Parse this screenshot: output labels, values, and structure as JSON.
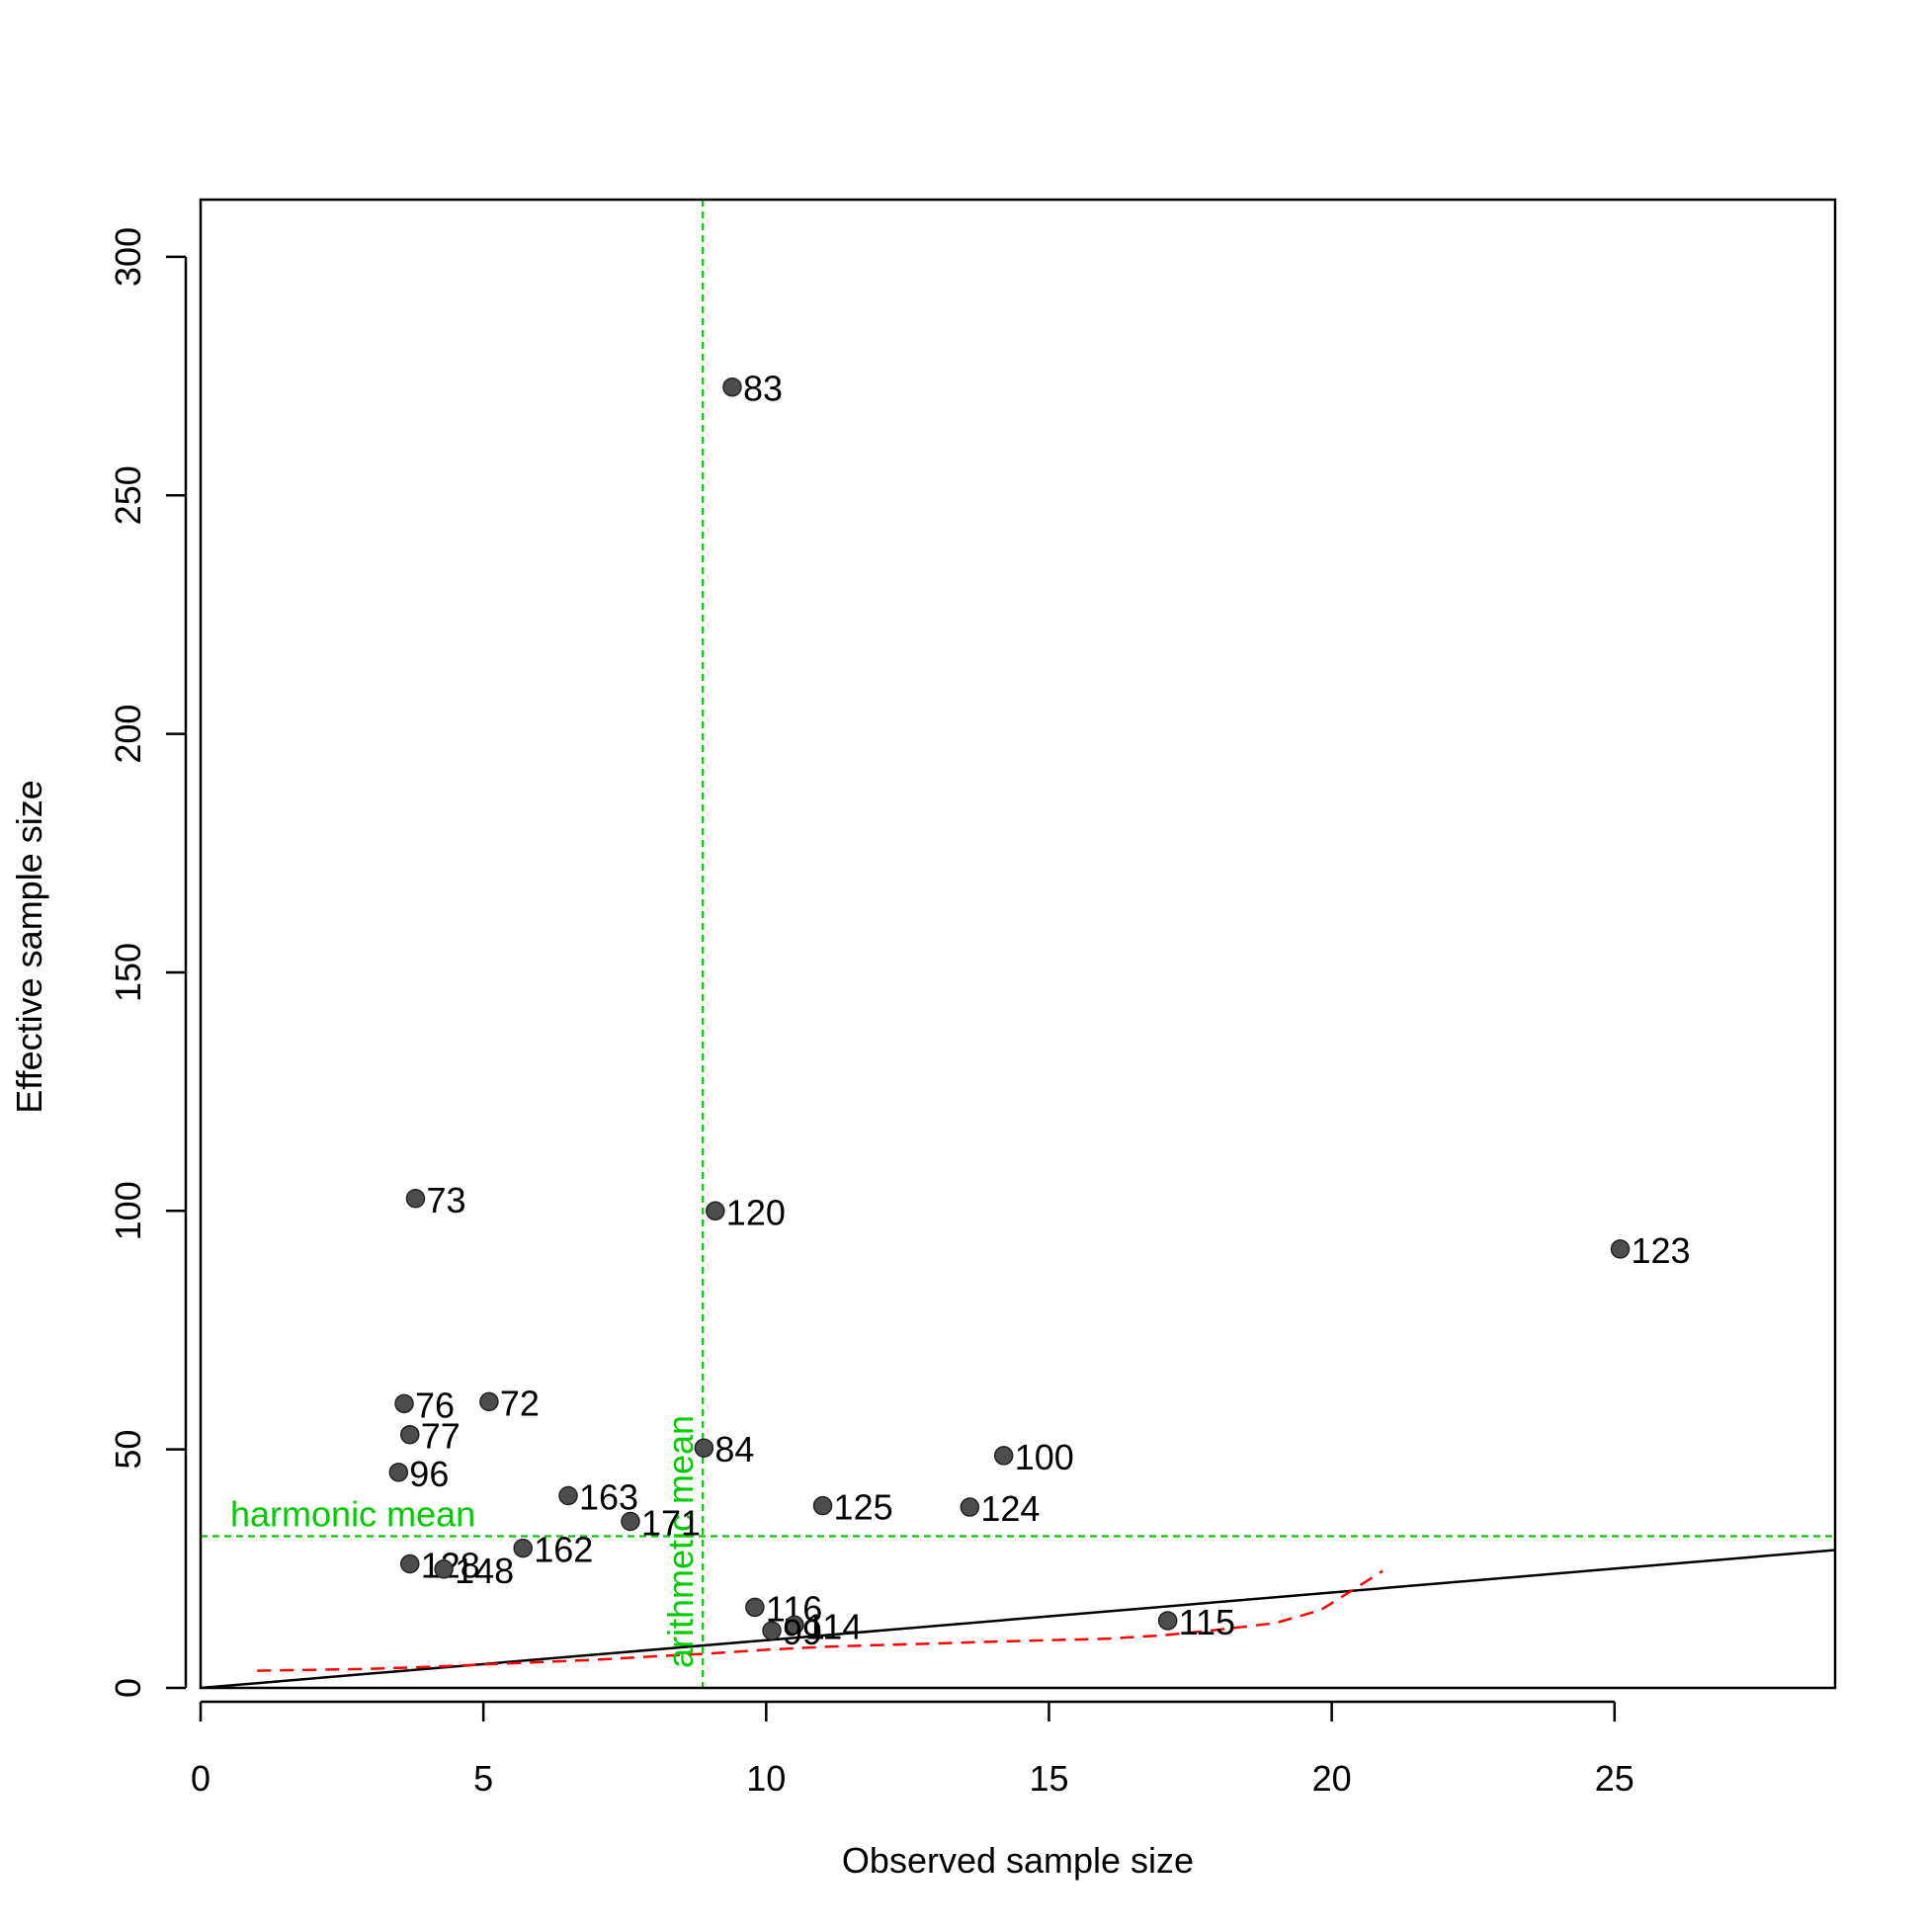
{
  "chart_data": {
    "type": "scatter",
    "title": "",
    "xlabel": "Observed sample size",
    "ylabel": "Effective sample size",
    "xlim": [
      0,
      28.9
    ],
    "ylim": [
      0,
      312
    ],
    "x_ticks": [
      0,
      5,
      10,
      15,
      20,
      25
    ],
    "y_ticks": [
      0,
      50,
      100,
      150,
      200,
      250,
      300
    ],
    "grid": false,
    "points": [
      {
        "label": "83",
        "x": 9.4,
        "y": 272.7
      },
      {
        "label": "73",
        "x": 3.8,
        "y": 102.6
      },
      {
        "label": "120",
        "x": 9.1,
        "y": 100.0
      },
      {
        "label": "123",
        "x": 25.1,
        "y": 92.0
      },
      {
        "label": "76",
        "x": 3.6,
        "y": 59.6
      },
      {
        "label": "72",
        "x": 5.1,
        "y": 60.0
      },
      {
        "label": "77",
        "x": 3.7,
        "y": 53.1
      },
      {
        "label": "84",
        "x": 8.9,
        "y": 50.3
      },
      {
        "label": "100",
        "x": 14.2,
        "y": 48.7
      },
      {
        "label": "96",
        "x": 3.5,
        "y": 45.2
      },
      {
        "label": "163",
        "x": 6.5,
        "y": 40.3
      },
      {
        "label": "125",
        "x": 11.0,
        "y": 38.2
      },
      {
        "label": "124",
        "x": 13.6,
        "y": 37.9
      },
      {
        "label": "171",
        "x": 7.6,
        "y": 34.9
      },
      {
        "label": "162",
        "x": 5.7,
        "y": 29.3
      },
      {
        "label": "128",
        "x": 3.7,
        "y": 26.0
      },
      {
        "label": "148",
        "x": 4.3,
        "y": 24.9
      },
      {
        "label": "116",
        "x": 9.8,
        "y": 16.9
      },
      {
        "label": "114",
        "x": 10.5,
        "y": 13.2
      },
      {
        "label": "99",
        "x": 10.1,
        "y": 12.0
      },
      {
        "label": "115",
        "x": 17.1,
        "y": 14.1
      }
    ],
    "point_color": "#4d4d4d",
    "reference_line": {
      "description": "y = x",
      "color": "#000000",
      "slope": 1,
      "intercept": 0
    },
    "smooth_curve": {
      "color": "#ff0000",
      "style": "dashed",
      "x": [
        1.0,
        2.0,
        3.0,
        4.0,
        5.0,
        6.0,
        7.0,
        8.0,
        9.0,
        10.0,
        11.0,
        12.0,
        13.0,
        14.0,
        15.0,
        16.0,
        17.0,
        18.0,
        19.0,
        19.8,
        20.3,
        20.9
      ],
      "y": [
        3.6,
        3.8,
        4.0,
        4.4,
        4.9,
        5.4,
        5.9,
        6.6,
        7.2,
        8.0,
        8.6,
        9.0,
        9.3,
        9.7,
        10.0,
        10.3,
        11.0,
        12.2,
        13.6,
        16.3,
        20.0,
        24.5
      ]
    },
    "mean_lines": [
      {
        "orientation": "horizontal",
        "label": "harmonic mean",
        "value": 31.8,
        "color": "#00cd00"
      },
      {
        "orientation": "vertical",
        "label": "arithmetic mean",
        "value": 8.88,
        "color": "#00cd00"
      }
    ]
  }
}
